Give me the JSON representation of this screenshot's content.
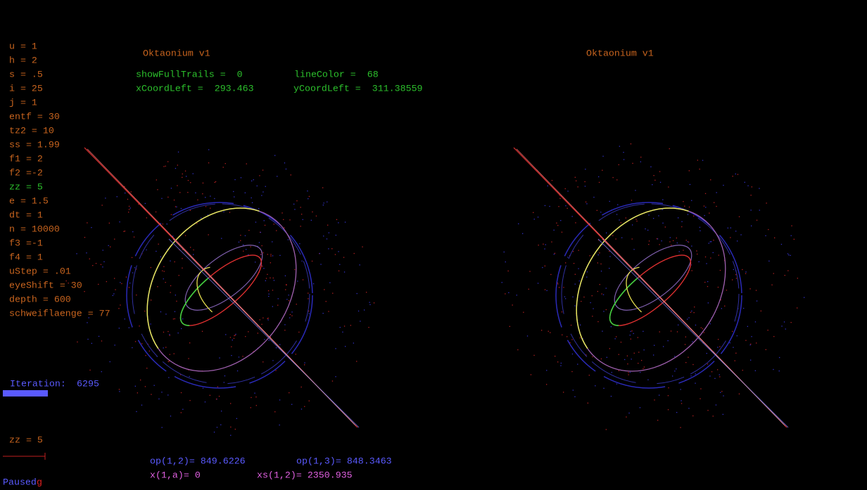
{
  "titles": [
    "Oktaonium v1",
    "Oktaonium v1"
  ],
  "params": [
    "u = 1",
    "h = 2",
    "s = .5",
    "i = 25",
    "j = 1",
    "entf = 30",
    "tz2 = 10",
    "ss = 1.99",
    "f1 = 2",
    "f2 =-2",
    "zz = 5",
    "e = 1.5",
    "dt = 1",
    "n = 10000",
    "f3 =-1",
    "f4 = 1",
    "uStep = .01",
    "eyeShift = 30",
    "depth = 600",
    "schweiflaenge = 77"
  ],
  "header": {
    "show_full_trails": "showFullTrails =  0",
    "line_color": "lineColor =  68",
    "x_coord_left": "xCoordLeft =  293.463",
    "y_coord_left": "yCoordLeft =  311.38559"
  },
  "iteration": {
    "label": "Iteration:",
    "value": 6295
  },
  "zz_line": "zz = 5",
  "readouts": [
    "op(1,2)= 849.6226",
    "op(1,3)= 848.3463",
    "x(1,a)= 0",
    "xs(1,2)= 2350.935"
  ],
  "status": "Paused",
  "cursor": "g"
}
